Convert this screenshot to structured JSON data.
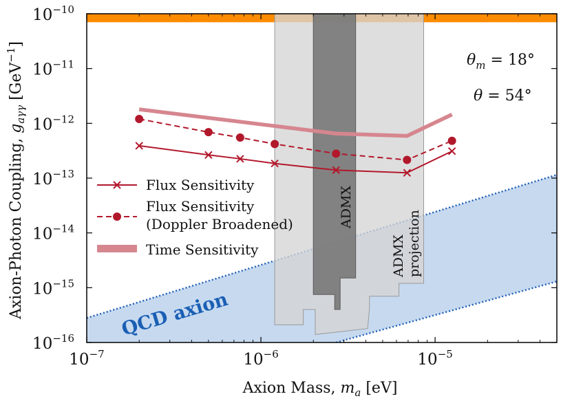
{
  "chart_data": {
    "type": "line",
    "title": "",
    "xlabel": "Axion Mass, m_a [eV]",
    "ylabel": "Axion-Photon Coupling, g_aγγ [GeV^-1]",
    "xscale": "log",
    "yscale": "log",
    "xlim": [
      1e-07,
      5e-05
    ],
    "ylim": [
      1e-16,
      1e-10
    ],
    "x_ticks": [
      {
        "value": 1e-07,
        "base": "10",
        "exp": "−7"
      },
      {
        "value": 1e-06,
        "base": "10",
        "exp": "−6"
      },
      {
        "value": 1e-05,
        "base": "10",
        "exp": "−5"
      }
    ],
    "y_ticks": [
      {
        "value": 1e-16,
        "base": "10",
        "exp": "−16"
      },
      {
        "value": 1e-15,
        "base": "10",
        "exp": "−15"
      },
      {
        "value": 1e-14,
        "base": "10",
        "exp": "−14"
      },
      {
        "value": 1e-13,
        "base": "10",
        "exp": "−13"
      },
      {
        "value": 1e-12,
        "base": "10",
        "exp": "−12"
      },
      {
        "value": 1e-11,
        "base": "10",
        "exp": "−11"
      },
      {
        "value": 1e-10,
        "base": "10",
        "exp": "−10"
      }
    ],
    "axis_labels": {
      "x_main": "Axion Mass, ",
      "x_var": "m",
      "x_sub": "a",
      "x_unit": " [eV]",
      "y_main": "Axion-Photon Coupling, ",
      "y_var": "g",
      "y_sub": "aγγ",
      "y_unit": " [GeV",
      "y_unit_exp": "−1",
      "y_unit_close": "]"
    },
    "series": [
      {
        "name": "Flux Sensitivity",
        "color": "#b2182b",
        "style": "solid",
        "marker": "x",
        "x": [
          2e-07,
          5e-07,
          7.6e-07,
          1.2e-06,
          2.7e-06,
          6.9e-06,
          1.25e-05
        ],
        "y": [
          3.9e-13,
          2.65e-13,
          2.25e-13,
          1.85e-13,
          1.4e-13,
          1.25e-13,
          3.1e-13
        ]
      },
      {
        "name_line1": "Flux Sensitivity",
        "name_line2": "(Doppler Broadened)",
        "color": "#b2182b",
        "style": "dashed",
        "marker": "circle",
        "x": [
          2e-07,
          5e-07,
          7.6e-07,
          1.2e-06,
          2.7e-06,
          6.9e-06,
          1.25e-05
        ],
        "y": [
          1.2e-12,
          6.9e-13,
          5.5e-13,
          4.2e-13,
          2.8e-13,
          2.15e-13,
          4.8e-13
        ]
      },
      {
        "name": "Time Sensitivity",
        "color": "#d6868f",
        "style": "thick",
        "x": [
          2e-07,
          2.7e-06,
          6.9e-06,
          1.25e-05
        ],
        "y": [
          1.8e-12,
          6.5e-13,
          5.9e-13,
          1.45e-12
        ]
      }
    ],
    "bands": {
      "top_exclusion": {
        "y_range": [
          7e-11,
          1e-10
        ],
        "color": "#ff8c00"
      },
      "qcd_band": {
        "label": "QCD axion",
        "color": "#c6d9ef",
        "line_color": "#1f5fb8",
        "upper": {
          "x": [
            1e-07,
            5e-05
          ],
          "y": [
            2.8e-16,
            1.15e-13
          ]
        },
        "lower": {
          "x": [
            2.7e-06,
            5e-05
          ],
          "y": [
            1e-16,
            1.3e-15
          ]
        }
      },
      "admx": {
        "label": "ADMX",
        "color": "#7a7a7a",
        "outline": [
          [
            2e-06,
            1e-10
          ],
          [
            3.5e-06,
            1e-10
          ],
          [
            3.5e-06,
            1.5e-15
          ],
          [
            2.85e-06,
            1.5e-15
          ],
          [
            2.85e-06,
            4e-16
          ],
          [
            2.65e-06,
            4e-16
          ],
          [
            2.65e-06,
            7.5e-16
          ],
          [
            2e-06,
            7.5e-16
          ]
        ]
      },
      "admx_projection": {
        "label_line1": "ADMX",
        "label_line2": "projection",
        "color": "#d5d5d5",
        "outline": [
          [
            1.2e-06,
            1e-10
          ],
          [
            8.6e-06,
            1e-10
          ],
          [
            8.6e-06,
            1.2e-15
          ],
          [
            6.2e-06,
            1.2e-15
          ],
          [
            6.2e-06,
            7e-16
          ],
          [
            4.2e-06,
            7e-16
          ],
          [
            4.2e-06,
            4.2e-16
          ],
          [
            4.1e-06,
            1.8e-16
          ],
          [
            2.05e-06,
            1.4e-16
          ],
          [
            2.05e-06,
            4e-16
          ],
          [
            1.75e-06,
            4e-16
          ],
          [
            1.75e-06,
            2.1e-16
          ],
          [
            1.2e-06,
            2.1e-16
          ]
        ]
      }
    },
    "annotations": [
      {
        "var": "θ",
        "sub": "m",
        "rest": " = 18°"
      },
      {
        "var": "θ",
        "sub": "",
        "rest": " = 54°"
      }
    ],
    "legend_location": "center-left"
  }
}
